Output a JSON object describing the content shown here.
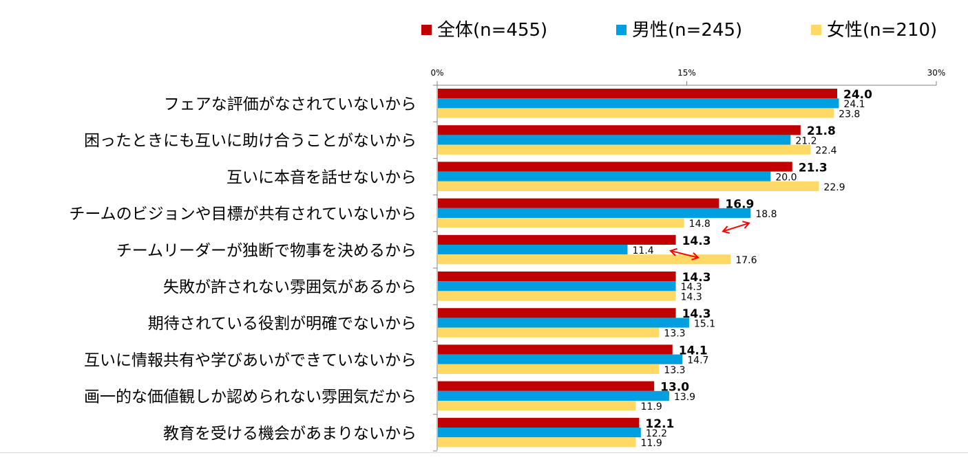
{
  "chart_data": {
    "type": "bar",
    "orientation": "horizontal",
    "categories": [
      "フェアな評価がなされていないから",
      "困ったときにも互いに助け合うことがないから",
      "互いに本音を話せないから",
      "チームのビジョンや目標が共有されていないから",
      "チームリーダーが独断で物事を決めるから",
      "失敗が許されない雰囲気があるから",
      "期待されている役割が明確でないから",
      "互いに情報共有や学びあいができていないから",
      "画一的な価値観しか認められない雰囲気だから",
      "教育を受ける機会があまりないから"
    ],
    "series": [
      {
        "name": "全体(n=455)",
        "color": "#c00000",
        "values": [
          24.0,
          21.8,
          21.3,
          16.9,
          14.3,
          14.3,
          14.3,
          14.1,
          13.0,
          12.1
        ]
      },
      {
        "name": "男性(n=245)",
        "color": "#00a0e0",
        "values": [
          24.1,
          21.2,
          20.0,
          18.8,
          11.4,
          14.3,
          15.1,
          14.7,
          13.9,
          12.2
        ]
      },
      {
        "name": "女性(n=210)",
        "color": "#ffd966",
        "values": [
          23.8,
          22.4,
          22.9,
          14.8,
          17.6,
          14.3,
          13.3,
          13.3,
          11.9,
          11.9
        ]
      }
    ],
    "xlim": [
      0,
      30
    ],
    "x_ticks": [
      "0%",
      "15%",
      "30%"
    ],
    "legend_position": "top-right",
    "grid": false,
    "annotations": [
      {
        "type": "double-arrow",
        "category_index": 3,
        "color": "#ff0000"
      },
      {
        "type": "double-arrow",
        "category_index": 4,
        "color": "#ff0000"
      }
    ]
  }
}
